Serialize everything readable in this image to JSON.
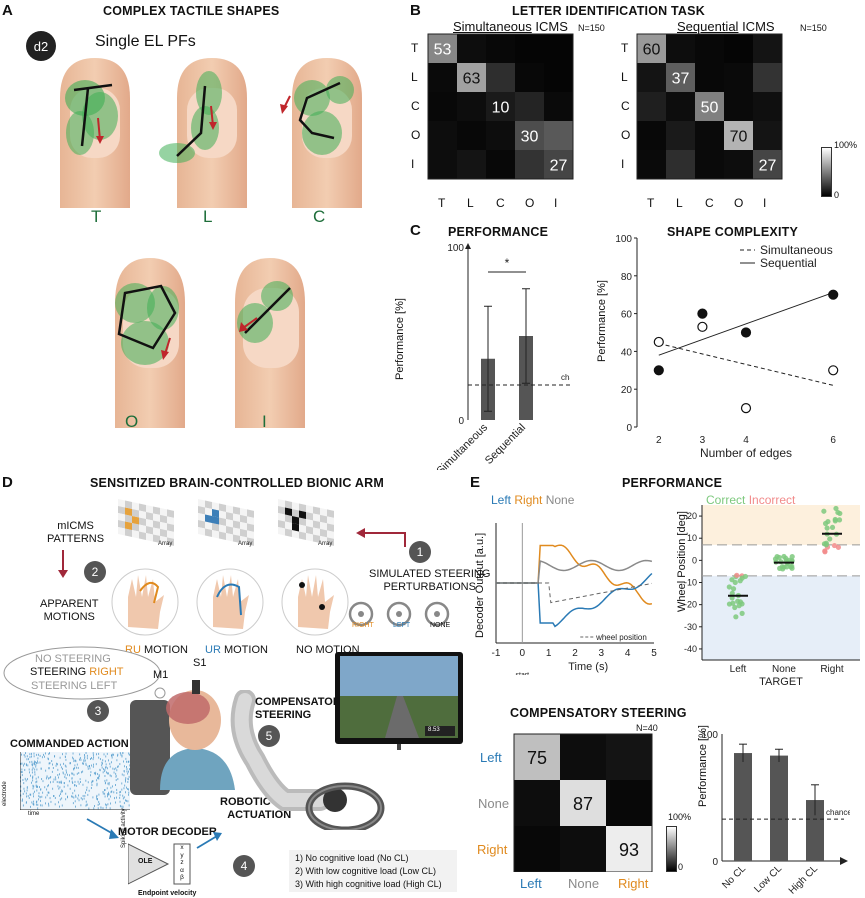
{
  "panelA": {
    "letter": "A",
    "title": "COMPLEX TACTILE SHAPES",
    "badge": "d2",
    "subtitle": "Single EL PFs",
    "fingers": [
      "T",
      "L",
      "C",
      "O",
      "I"
    ]
  },
  "panelB": {
    "letter": "B",
    "title": "LETTER IDENTIFICATION TASK",
    "left": {
      "title_underlined": "Simultaneous",
      "title_rest": " ICMS",
      "n": "N=150",
      "diag": [
        "53",
        "63",
        "10",
        "30",
        "27"
      ]
    },
    "right": {
      "title_underlined": "Sequential",
      "title_rest": " ICMS",
      "n": "N=150",
      "diag": [
        "60",
        "37",
        "50",
        "70",
        "27"
      ]
    },
    "row_labels": [
      "T",
      "L",
      "C",
      "O",
      "I"
    ],
    "col_labels": [
      "T",
      "L",
      "C",
      "O",
      "I"
    ],
    "colorbar_top": "100%",
    "colorbar_bottom": "0"
  },
  "panelC": {
    "letter": "C",
    "perf_title": "PERFORMANCE",
    "perf_ylabel": "Performance [%]",
    "perf_ytick_top": "100",
    "perf_ytick_bottom": "0",
    "perf_sig": "*",
    "perf_chance": "chance",
    "perf_xlabels": [
      "Simultaneous",
      "Sequential"
    ],
    "shape_title": "SHAPE COMPLEXITY",
    "shape_legend": [
      "Simultaneous",
      "Sequential"
    ],
    "shape_xlabel": "Number of edges",
    "shape_ylabel": "Performance [%]",
    "shape_yticks": [
      "100",
      "80",
      "60",
      "40",
      "20",
      "0"
    ],
    "shape_xticks": [
      "2",
      "3",
      "4",
      "6"
    ]
  },
  "panelD": {
    "letter": "D",
    "title": "SENSITIZED BRAIN-CONTROLLED BIONIC ARM",
    "micms": "mICMS\nPATTERNS",
    "array": "Array",
    "apparent": "APPARENT\nMOTIONS",
    "motions": [
      {
        "code": "RU",
        "rest": " MOTION",
        "color": "#e08a1e"
      },
      {
        "code": "UR",
        "rest": " MOTION",
        "color": "#2a7ab5"
      },
      {
        "code": "NO",
        "rest": " MOTION",
        "color": "#222222"
      }
    ],
    "simulated": "SIMULATED STEERING\nPERTURBATIONS",
    "wheels": [
      "RIGHT",
      "LEFT",
      "NONE"
    ],
    "thought": {
      "l1": "NO STEERING",
      "l2a": "STEERING ",
      "l2b": "RIGHT",
      "l3": "STEERING LEFT"
    },
    "s1": "S1",
    "m1": "M1",
    "commanded": "COMMANDED ACTION",
    "electrode": "electrode",
    "time": "time",
    "compensatory": "COMPENSATORY\nSTEERING",
    "motor_decoder": "MOTOR DECODER",
    "robotic": "ROBOTIC ARM\nACTUATION",
    "ole": "OLE",
    "spiking": "Spiking activity",
    "endpoint": "Endpoint velocity",
    "xyz": [
      "x",
      "y",
      "z",
      "α",
      "β"
    ],
    "steps": [
      "1",
      "2",
      "3",
      "4",
      "5"
    ],
    "load_list": [
      "1) No cognitive load (No CL)",
      "2) With low cognitive load (Low CL)",
      "3) With high cognitive load (High CL)"
    ],
    "screen_number": "8.53"
  },
  "panelE": {
    "letter": "E",
    "title": "PERFORMANCE",
    "legend_left": "Left",
    "legend_right": "Right",
    "legend_none": "None",
    "decoder_ylabel": "Decoder Output [a.u.]",
    "decoder_xticks": [
      "-1",
      "0",
      "1",
      "2",
      "3",
      "4",
      "5"
    ],
    "decoder_xlabel": "Time (s)",
    "start": "start",
    "wheel_pos": "wheel position",
    "scatter_legend_correct": "Correct",
    "scatter_legend_incorrect": "Incorrect",
    "scatter_ylabel": "Wheel Position [deg]",
    "scatter_yticks": [
      "20",
      "10",
      "0",
      "-10",
      "-20",
      "-30",
      "-40"
    ],
    "scatter_xlabels": [
      "Left",
      "None",
      "Right"
    ],
    "scatter_xtitle": "TARGET",
    "comp_title": "COMPENSATORY STEERING",
    "comp_n": "N=40",
    "comp_rows": [
      "Left",
      "None",
      "Right"
    ],
    "comp_cols": [
      "Left",
      "None",
      "Right"
    ],
    "comp_diag": [
      "75",
      "87",
      "93"
    ],
    "comp_cb_top": "100%",
    "comp_cb_bottom": "0",
    "bar_ylabel": "Performance [%]",
    "bar_ytick_top": "100",
    "bar_ytick_bottom": "0",
    "bar_chance": "chance",
    "bar_xlabels": [
      "No CL",
      "Low CL",
      "High CL"
    ]
  },
  "colors": {
    "left": "#2a7ab5",
    "right": "#e08a1e",
    "none": "#8a8a8a",
    "correct": "#7ec97e",
    "incorrect": "#f28b8b"
  },
  "chart_data": [
    {
      "type": "heatmap",
      "title": "Simultaneous ICMS",
      "rows": [
        "T",
        "L",
        "C",
        "O",
        "I"
      ],
      "cols": [
        "T",
        "L",
        "C",
        "O",
        "I"
      ],
      "values": [
        [
          53,
          5,
          3,
          2,
          2
        ],
        [
          4,
          63,
          18,
          3,
          2
        ],
        [
          3,
          5,
          10,
          14,
          4
        ],
        [
          5,
          3,
          5,
          30,
          35
        ],
        [
          5,
          8,
          3,
          20,
          27
        ]
      ]
    },
    {
      "type": "heatmap",
      "title": "Sequential ICMS",
      "rows": [
        "T",
        "L",
        "C",
        "O",
        "I"
      ],
      "cols": [
        "T",
        "L",
        "C",
        "O",
        "I"
      ],
      "values": [
        [
          60,
          5,
          3,
          2,
          8
        ],
        [
          8,
          37,
          3,
          4,
          20
        ],
        [
          12,
          5,
          50,
          4,
          6
        ],
        [
          3,
          10,
          4,
          70,
          8
        ],
        [
          4,
          18,
          4,
          5,
          27
        ]
      ]
    },
    {
      "type": "bar",
      "categories": [
        "Simultaneous",
        "Sequential"
      ],
      "values": [
        35,
        48
      ],
      "err": [
        30,
        27
      ],
      "chance": 20,
      "ylim": [
        0,
        100
      ]
    },
    {
      "type": "scatter",
      "x": [
        2,
        3,
        4,
        6
      ],
      "series": [
        {
          "name": "Simultaneous",
          "values": [
            45,
            53,
            10,
            30
          ]
        },
        {
          "name": "Sequential",
          "values": [
            30,
            60,
            50,
            70
          ]
        }
      ],
      "xlim": [
        1.5,
        6.5
      ],
      "ylim": [
        0,
        100
      ]
    },
    {
      "type": "heatmap",
      "title": "COMPENSATORY STEERING",
      "rows": [
        "Left",
        "None",
        "Right"
      ],
      "cols": [
        "Left",
        "None",
        "Right"
      ],
      "values": [
        [
          75,
          5,
          8
        ],
        [
          5,
          87,
          3
        ],
        [
          3,
          5,
          93
        ]
      ]
    },
    {
      "type": "bar",
      "categories": [
        "No CL",
        "Low CL",
        "High CL"
      ],
      "values": [
        85,
        83,
        48
      ],
      "err": [
        7,
        5,
        12
      ],
      "chance": 33,
      "ylim": [
        0,
        100
      ]
    }
  ]
}
